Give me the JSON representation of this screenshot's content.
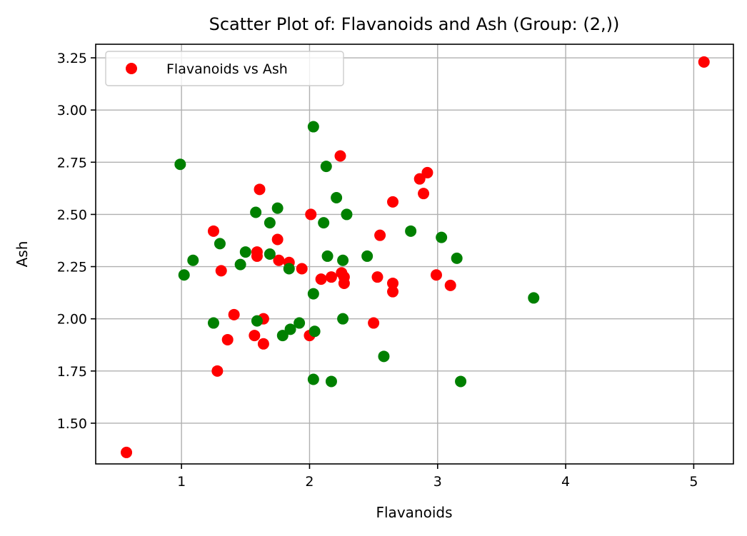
{
  "chart_data": {
    "type": "scatter",
    "title": "Scatter Plot of: Flavanoids and Ash (Group: (2,))",
    "xlabel": "Flavanoids",
    "ylabel": "Ash",
    "xlim": [
      0.33,
      5.31
    ],
    "ylim": [
      1.305,
      3.315
    ],
    "xticks": [
      1,
      2,
      3,
      4,
      5
    ],
    "xtick_labels": [
      "1",
      "2",
      "3",
      "4",
      "5"
    ],
    "yticks": [
      1.5,
      1.75,
      2.0,
      2.25,
      2.5,
      2.75,
      3.0,
      3.25
    ],
    "ytick_labels": [
      "1.50",
      "1.75",
      "2.00",
      "2.25",
      "2.50",
      "2.75",
      "3.00",
      "3.25"
    ],
    "grid": true,
    "legend": {
      "position": "top-left",
      "entries": [
        {
          "label": "Flavanoids vs Ash",
          "color": "#ff0000"
        }
      ]
    },
    "series": [
      {
        "name": "Flavanoids vs Ash",
        "color": "#ff0000",
        "points": [
          [
            0.57,
            1.36
          ],
          [
            1.25,
            2.42
          ],
          [
            1.28,
            1.75
          ],
          [
            1.31,
            2.23
          ],
          [
            1.36,
            1.9
          ],
          [
            1.41,
            2.02
          ],
          [
            1.57,
            1.92
          ],
          [
            1.59,
            2.32
          ],
          [
            1.59,
            2.3
          ],
          [
            1.61,
            2.62
          ],
          [
            1.64,
            2.0
          ],
          [
            1.64,
            1.88
          ],
          [
            1.75,
            2.38
          ],
          [
            1.76,
            2.28
          ],
          [
            1.84,
            2.27
          ],
          [
            1.94,
            2.24
          ],
          [
            2.0,
            1.92
          ],
          [
            2.01,
            2.5
          ],
          [
            2.09,
            2.19
          ],
          [
            2.17,
            2.2
          ],
          [
            2.24,
            2.78
          ],
          [
            2.25,
            2.22
          ],
          [
            2.27,
            2.2
          ],
          [
            2.27,
            2.17
          ],
          [
            2.5,
            1.98
          ],
          [
            2.53,
            2.2
          ],
          [
            2.55,
            2.4
          ],
          [
            2.65,
            2.56
          ],
          [
            2.65,
            2.17
          ],
          [
            2.65,
            2.13
          ],
          [
            2.86,
            2.67
          ],
          [
            2.89,
            2.6
          ],
          [
            2.92,
            2.7
          ],
          [
            2.99,
            2.21
          ],
          [
            3.1,
            2.16
          ],
          [
            5.08,
            3.23
          ]
        ]
      },
      {
        "color": "#008000",
        "points": [
          [
            0.99,
            2.74
          ],
          [
            1.02,
            2.21
          ],
          [
            1.09,
            2.28
          ],
          [
            1.25,
            1.98
          ],
          [
            1.3,
            2.36
          ],
          [
            1.46,
            2.26
          ],
          [
            1.5,
            2.32
          ],
          [
            1.58,
            2.51
          ],
          [
            1.59,
            1.99
          ],
          [
            1.69,
            2.46
          ],
          [
            1.69,
            2.31
          ],
          [
            1.75,
            2.53
          ],
          [
            1.79,
            1.92
          ],
          [
            1.84,
            2.24
          ],
          [
            1.85,
            1.95
          ],
          [
            1.92,
            1.98
          ],
          [
            2.03,
            2.92
          ],
          [
            2.03,
            2.12
          ],
          [
            2.03,
            1.71
          ],
          [
            2.04,
            1.94
          ],
          [
            2.11,
            2.46
          ],
          [
            2.13,
            2.73
          ],
          [
            2.14,
            2.3
          ],
          [
            2.17,
            1.7
          ],
          [
            2.21,
            2.58
          ],
          [
            2.26,
            2.28
          ],
          [
            2.26,
            2.0
          ],
          [
            2.29,
            2.5
          ],
          [
            2.45,
            2.3
          ],
          [
            2.58,
            1.82
          ],
          [
            2.79,
            2.42
          ],
          [
            3.03,
            2.39
          ],
          [
            3.15,
            2.29
          ],
          [
            3.18,
            1.7
          ],
          [
            3.75,
            2.1
          ]
        ]
      }
    ]
  }
}
